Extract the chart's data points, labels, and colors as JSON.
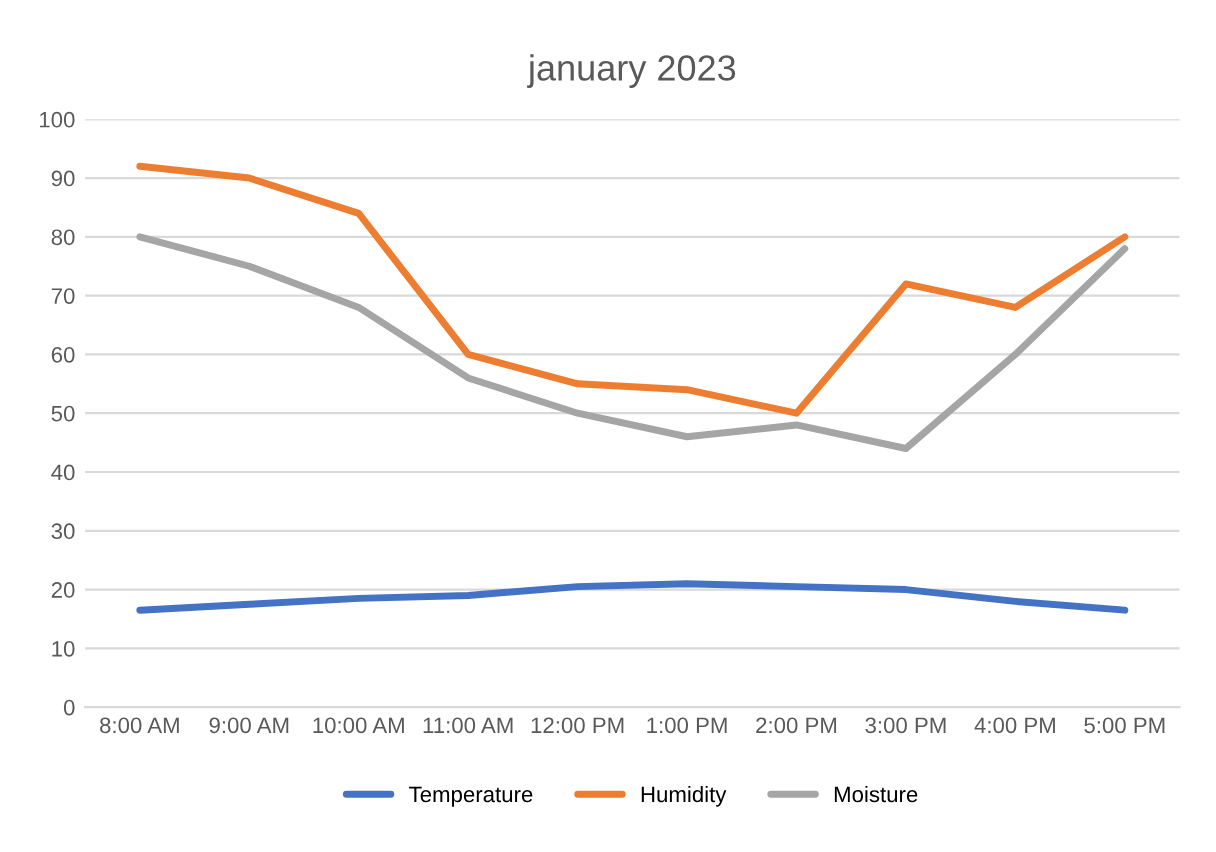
{
  "chart_data": {
    "type": "line",
    "title": "january 2023",
    "categories": [
      "8:00 AM",
      "9:00 AM",
      "10:00 AM",
      "11:00 AM",
      "12:00 PM",
      "1:00 PM",
      "2:00 PM",
      "3:00 PM",
      "4:00 PM",
      "5:00 PM"
    ],
    "series": [
      {
        "name": "Temperature",
        "color": "#4472c4",
        "values": [
          16.5,
          17.5,
          18.5,
          19,
          20.5,
          21,
          20.5,
          20,
          18,
          16.5
        ]
      },
      {
        "name": "Humidity",
        "color": "#ed7d31",
        "values": [
          92,
          90,
          84,
          60,
          55,
          54,
          50,
          72,
          68,
          80
        ]
      },
      {
        "name": "Moisture",
        "color": "#a5a5a5",
        "values": [
          80,
          75,
          68,
          56,
          50,
          46,
          48,
          44,
          60,
          78
        ]
      }
    ],
    "ylim": [
      0,
      100
    ],
    "yticks": [
      0,
      10,
      20,
      30,
      40,
      50,
      60,
      70,
      80,
      90,
      100
    ],
    "grid": "y",
    "legend": "bottom",
    "marker": "none",
    "line_style": "solid"
  }
}
